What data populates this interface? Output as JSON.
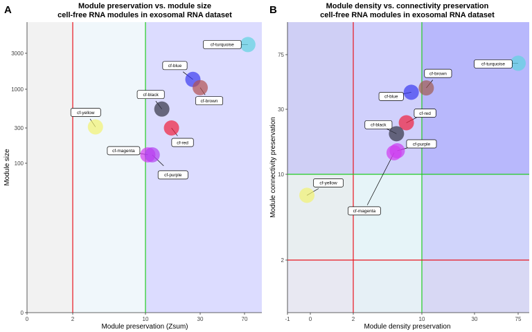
{
  "panels": [
    {
      "letter": "A",
      "title": "Module preservation vs. module size",
      "subtitle": "cell-free RNA modules in exosomal RNA dataset",
      "xlabel": "Module preservation (Zsum)",
      "ylabel": "Module size"
    },
    {
      "letter": "B",
      "title": "Module density vs. connectivity preservation",
      "subtitle": "cell-free RNA modules in exosomal RNA dataset",
      "xlabel": "Module density preservation",
      "ylabel": "Module connectivity preservation"
    }
  ],
  "chart_data": [
    {
      "type": "scatter",
      "title": "Module preservation vs. module size",
      "subtitle": "cell-free RNA modules in exosomal RNA dataset",
      "xlabel": "Module preservation (Zsum)",
      "ylabel": "Module size",
      "x_scale": "pseudo-log",
      "y_scale": "pseudo-log",
      "xlim": [
        0,
        100
      ],
      "ylim": [
        0,
        10000
      ],
      "x_ticks": [
        "0",
        "2",
        "10",
        "30",
        "70"
      ],
      "y_ticks": [
        "0",
        "100",
        "300",
        "1000",
        "3000"
      ],
      "thresholds_x": [
        {
          "value": 2,
          "color": "#e8141e"
        },
        {
          "value": 10,
          "color": "#22cc22"
        }
      ],
      "regions": [
        {
          "from": 0,
          "to": 2,
          "color": "#f2f2f2"
        },
        {
          "from": 2,
          "to": 10,
          "color": "#f0f7fb"
        },
        {
          "from": 10,
          "to": 100,
          "color": "#dcdcff"
        }
      ],
      "points": [
        {
          "name": "cf-turquoise",
          "x": 75,
          "y": 4200,
          "color": "#5fd3e0"
        },
        {
          "name": "cf-blue",
          "x": 26,
          "y": 1350,
          "color": "#3b3bf0"
        },
        {
          "name": "cf-brown",
          "x": 30,
          "y": 1050,
          "color": "#b05050"
        },
        {
          "name": "cf-black",
          "x": 14,
          "y": 540,
          "color": "#333344"
        },
        {
          "name": "cf-red",
          "x": 17,
          "y": 300,
          "color": "#f0203c"
        },
        {
          "name": "cf-yellow",
          "x": 3.5,
          "y": 310,
          "color": "#f2f270"
        },
        {
          "name": "cf-magenta",
          "x": 10.5,
          "y": 130,
          "color": "#d23cf0"
        },
        {
          "name": "cf-purple",
          "x": 11.5,
          "y": 130,
          "color": "#b040f0"
        }
      ]
    },
    {
      "type": "scatter",
      "title": "Module density vs. connectivity preservation",
      "subtitle": "cell-free RNA modules in exosomal RNA dataset",
      "xlabel": "Module density preservation",
      "ylabel": "Module connectivity preservation",
      "x_scale": "pseudo-log",
      "y_scale": "pseudo-log",
      "xlim": [
        -1,
        100
      ],
      "ylim": [
        0,
        100
      ],
      "x_ticks": [
        "-1",
        "0",
        "2",
        "10",
        "30",
        "75"
      ],
      "y_ticks": [
        "2",
        "10",
        "30",
        "75"
      ],
      "thresholds_x": [
        {
          "value": 2,
          "color": "#e8141e"
        },
        {
          "value": 10,
          "color": "#22cc22"
        }
      ],
      "thresholds_y": [
        {
          "value": 2,
          "color": "#e8141e"
        },
        {
          "value": 10,
          "color": "#22cc22"
        }
      ],
      "points": [
        {
          "name": "cf-turquoise",
          "x": 75,
          "y": 65,
          "color": "#5fd3e0"
        },
        {
          "name": "cf-brown",
          "x": 11,
          "y": 43,
          "color": "#a05a50"
        },
        {
          "name": "cf-blue",
          "x": 8,
          "y": 40,
          "color": "#3b3bf0"
        },
        {
          "name": "cf-red",
          "x": 7.2,
          "y": 24,
          "color": "#f0203c"
        },
        {
          "name": "cf-black",
          "x": 5.8,
          "y": 20,
          "color": "#333344"
        },
        {
          "name": "cf-purple",
          "x": 5.9,
          "y": 15,
          "color": "#c83cf0"
        },
        {
          "name": "cf-magenta",
          "x": 5.5,
          "y": 14.5,
          "color": "#d23cf0"
        },
        {
          "name": "cf-yellow",
          "x": -0.5,
          "y": 7,
          "color": "#f2f270"
        }
      ]
    }
  ]
}
